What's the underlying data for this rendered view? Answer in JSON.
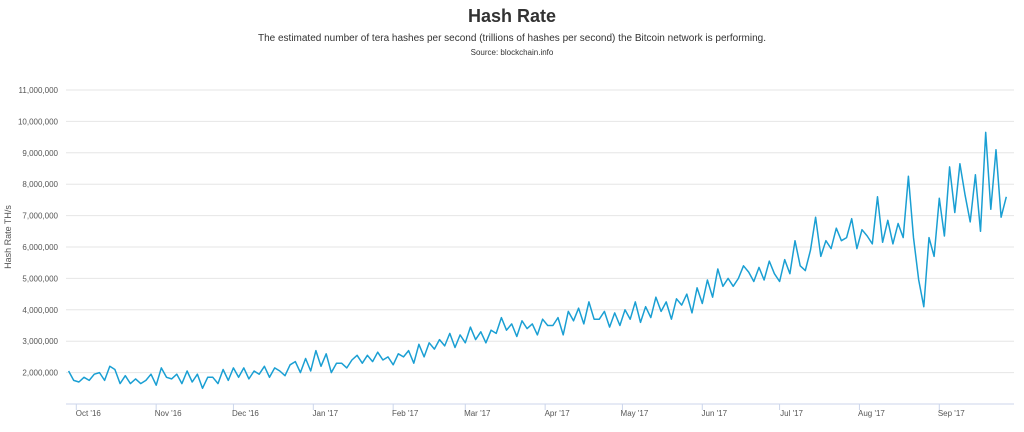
{
  "header": {
    "title": "Hash Rate",
    "subtitle": "The estimated number of tera hashes per second (trillions of hashes per second) the Bitcoin network is performing.",
    "source": "Source: blockchain.info"
  },
  "colors": {
    "line": "#1a9fd3",
    "grid": "#e6e6e6",
    "axis": "#ccd6eb"
  },
  "chart_data": {
    "type": "line",
    "title": "Hash Rate",
    "ylabel": "Hash Rate TH/s",
    "xlabel": "",
    "ylim": [
      1000000,
      11000000
    ],
    "xlim": [
      "2016-09-27",
      "2017-09-30"
    ],
    "grid": true,
    "yticks": [
      {
        "value": 2000000,
        "label": "2,000,000"
      },
      {
        "value": 3000000,
        "label": "3,000,000"
      },
      {
        "value": 4000000,
        "label": "4,000,000"
      },
      {
        "value": 5000000,
        "label": "5,000,000"
      },
      {
        "value": 6000000,
        "label": "6,000,000"
      },
      {
        "value": 7000000,
        "label": "7,000,000"
      },
      {
        "value": 8000000,
        "label": "8,000,000"
      },
      {
        "value": 9000000,
        "label": "9,000,000"
      },
      {
        "value": 10000000,
        "label": "10,000,000"
      },
      {
        "value": 11000000,
        "label": "11,000,000"
      }
    ],
    "xticks": [
      {
        "date": "2016-10-01",
        "label": "Oct '16"
      },
      {
        "date": "2016-11-01",
        "label": "Nov '16"
      },
      {
        "date": "2016-12-01",
        "label": "Dec '16"
      },
      {
        "date": "2017-01-01",
        "label": "Jan '17"
      },
      {
        "date": "2017-02-01",
        "label": "Feb '17"
      },
      {
        "date": "2017-03-01",
        "label": "Mar '17"
      },
      {
        "date": "2017-04-01",
        "label": "Apr '17"
      },
      {
        "date": "2017-05-01",
        "label": "May '17"
      },
      {
        "date": "2017-06-01",
        "label": "Jun '17"
      },
      {
        "date": "2017-07-01",
        "label": "Jul '17"
      },
      {
        "date": "2017-08-01",
        "label": "Aug '17"
      },
      {
        "date": "2017-09-01",
        "label": "Sep '17"
      }
    ],
    "series": [
      {
        "points": [
          [
            "2016-09-28",
            2050000
          ],
          [
            "2016-09-30",
            1750000
          ],
          [
            "2016-10-02",
            1700000
          ],
          [
            "2016-10-04",
            1850000
          ],
          [
            "2016-10-06",
            1750000
          ],
          [
            "2016-10-08",
            1950000
          ],
          [
            "2016-10-10",
            2000000
          ],
          [
            "2016-10-12",
            1750000
          ],
          [
            "2016-10-14",
            2200000
          ],
          [
            "2016-10-16",
            2100000
          ],
          [
            "2016-10-18",
            1650000
          ],
          [
            "2016-10-20",
            1900000
          ],
          [
            "2016-10-22",
            1650000
          ],
          [
            "2016-10-24",
            1800000
          ],
          [
            "2016-10-26",
            1650000
          ],
          [
            "2016-10-28",
            1750000
          ],
          [
            "2016-10-30",
            1950000
          ],
          [
            "2016-11-01",
            1600000
          ],
          [
            "2016-11-03",
            2150000
          ],
          [
            "2016-11-05",
            1850000
          ],
          [
            "2016-11-07",
            1800000
          ],
          [
            "2016-11-09",
            1950000
          ],
          [
            "2016-11-11",
            1650000
          ],
          [
            "2016-11-13",
            2050000
          ],
          [
            "2016-11-15",
            1700000
          ],
          [
            "2016-11-17",
            1950000
          ],
          [
            "2016-11-19",
            1500000
          ],
          [
            "2016-11-21",
            1850000
          ],
          [
            "2016-11-23",
            1850000
          ],
          [
            "2016-11-25",
            1650000
          ],
          [
            "2016-11-27",
            2100000
          ],
          [
            "2016-11-29",
            1750000
          ],
          [
            "2016-12-01",
            2150000
          ],
          [
            "2016-12-03",
            1850000
          ],
          [
            "2016-12-05",
            2150000
          ],
          [
            "2016-12-07",
            1800000
          ],
          [
            "2016-12-09",
            2050000
          ],
          [
            "2016-12-11",
            1950000
          ],
          [
            "2016-12-13",
            2200000
          ],
          [
            "2016-12-15",
            1850000
          ],
          [
            "2016-12-17",
            2150000
          ],
          [
            "2016-12-19",
            2050000
          ],
          [
            "2016-12-21",
            1900000
          ],
          [
            "2016-12-23",
            2250000
          ],
          [
            "2016-12-25",
            2350000
          ],
          [
            "2016-12-27",
            2000000
          ],
          [
            "2016-12-29",
            2450000
          ],
          [
            "2016-12-31",
            2050000
          ],
          [
            "2017-01-02",
            2700000
          ],
          [
            "2017-01-04",
            2200000
          ],
          [
            "2017-01-06",
            2600000
          ],
          [
            "2017-01-08",
            2000000
          ],
          [
            "2017-01-10",
            2300000
          ],
          [
            "2017-01-12",
            2300000
          ],
          [
            "2017-01-14",
            2150000
          ],
          [
            "2017-01-16",
            2400000
          ],
          [
            "2017-01-18",
            2550000
          ],
          [
            "2017-01-20",
            2300000
          ],
          [
            "2017-01-22",
            2550000
          ],
          [
            "2017-01-24",
            2350000
          ],
          [
            "2017-01-26",
            2650000
          ],
          [
            "2017-01-28",
            2400000
          ],
          [
            "2017-01-30",
            2500000
          ],
          [
            "2017-02-01",
            2250000
          ],
          [
            "2017-02-03",
            2600000
          ],
          [
            "2017-02-05",
            2500000
          ],
          [
            "2017-02-07",
            2700000
          ],
          [
            "2017-02-09",
            2300000
          ],
          [
            "2017-02-11",
            2900000
          ],
          [
            "2017-02-13",
            2500000
          ],
          [
            "2017-02-15",
            2950000
          ],
          [
            "2017-02-17",
            2750000
          ],
          [
            "2017-02-19",
            3050000
          ],
          [
            "2017-02-21",
            2850000
          ],
          [
            "2017-02-23",
            3250000
          ],
          [
            "2017-02-25",
            2800000
          ],
          [
            "2017-02-27",
            3200000
          ],
          [
            "2017-03-01",
            2950000
          ],
          [
            "2017-03-03",
            3450000
          ],
          [
            "2017-03-05",
            3050000
          ],
          [
            "2017-03-07",
            3300000
          ],
          [
            "2017-03-09",
            2950000
          ],
          [
            "2017-03-11",
            3350000
          ],
          [
            "2017-03-13",
            3250000
          ],
          [
            "2017-03-15",
            3750000
          ],
          [
            "2017-03-17",
            3350000
          ],
          [
            "2017-03-19",
            3550000
          ],
          [
            "2017-03-21",
            3150000
          ],
          [
            "2017-03-23",
            3650000
          ],
          [
            "2017-03-25",
            3400000
          ],
          [
            "2017-03-27",
            3550000
          ],
          [
            "2017-03-29",
            3200000
          ],
          [
            "2017-03-31",
            3700000
          ],
          [
            "2017-04-02",
            3500000
          ],
          [
            "2017-04-04",
            3500000
          ],
          [
            "2017-04-06",
            3750000
          ],
          [
            "2017-04-08",
            3200000
          ],
          [
            "2017-04-10",
            3950000
          ],
          [
            "2017-04-12",
            3650000
          ],
          [
            "2017-04-14",
            4050000
          ],
          [
            "2017-04-16",
            3550000
          ],
          [
            "2017-04-18",
            4250000
          ],
          [
            "2017-04-20",
            3700000
          ],
          [
            "2017-04-22",
            3700000
          ],
          [
            "2017-04-24",
            3950000
          ],
          [
            "2017-04-26",
            3450000
          ],
          [
            "2017-04-28",
            3900000
          ],
          [
            "2017-04-30",
            3500000
          ],
          [
            "2017-05-02",
            4000000
          ],
          [
            "2017-05-04",
            3700000
          ],
          [
            "2017-05-06",
            4250000
          ],
          [
            "2017-05-08",
            3600000
          ],
          [
            "2017-05-10",
            4100000
          ],
          [
            "2017-05-12",
            3750000
          ],
          [
            "2017-05-14",
            4400000
          ],
          [
            "2017-05-16",
            3950000
          ],
          [
            "2017-05-18",
            4250000
          ],
          [
            "2017-05-20",
            3700000
          ],
          [
            "2017-05-22",
            4350000
          ],
          [
            "2017-05-24",
            4150000
          ],
          [
            "2017-05-26",
            4500000
          ],
          [
            "2017-05-28",
            3900000
          ],
          [
            "2017-05-30",
            4700000
          ],
          [
            "2017-06-01",
            4200000
          ],
          [
            "2017-06-03",
            4950000
          ],
          [
            "2017-06-05",
            4400000
          ],
          [
            "2017-06-07",
            5300000
          ],
          [
            "2017-06-09",
            4750000
          ],
          [
            "2017-06-11",
            5000000
          ],
          [
            "2017-06-13",
            4750000
          ],
          [
            "2017-06-15",
            5000000
          ],
          [
            "2017-06-17",
            5400000
          ],
          [
            "2017-06-19",
            5200000
          ],
          [
            "2017-06-21",
            4900000
          ],
          [
            "2017-06-23",
            5350000
          ],
          [
            "2017-06-25",
            4950000
          ],
          [
            "2017-06-27",
            5550000
          ],
          [
            "2017-06-29",
            5150000
          ],
          [
            "2017-07-01",
            4900000
          ],
          [
            "2017-07-03",
            5600000
          ],
          [
            "2017-07-05",
            5150000
          ],
          [
            "2017-07-07",
            6200000
          ],
          [
            "2017-07-09",
            5400000
          ],
          [
            "2017-07-11",
            5250000
          ],
          [
            "2017-07-13",
            5900000
          ],
          [
            "2017-07-15",
            6950000
          ],
          [
            "2017-07-17",
            5700000
          ],
          [
            "2017-07-19",
            6200000
          ],
          [
            "2017-07-21",
            5950000
          ],
          [
            "2017-07-23",
            6600000
          ],
          [
            "2017-07-25",
            6200000
          ],
          [
            "2017-07-27",
            6300000
          ],
          [
            "2017-07-29",
            6900000
          ],
          [
            "2017-07-31",
            5950000
          ],
          [
            "2017-08-02",
            6550000
          ],
          [
            "2017-08-04",
            6350000
          ],
          [
            "2017-08-06",
            6100000
          ],
          [
            "2017-08-08",
            7600000
          ],
          [
            "2017-08-10",
            6150000
          ],
          [
            "2017-08-12",
            6850000
          ],
          [
            "2017-08-14",
            6100000
          ],
          [
            "2017-08-16",
            6750000
          ],
          [
            "2017-08-18",
            6300000
          ],
          [
            "2017-08-20",
            8250000
          ],
          [
            "2017-08-22",
            6300000
          ],
          [
            "2017-08-24",
            4950000
          ],
          [
            "2017-08-26",
            4100000
          ],
          [
            "2017-08-28",
            6300000
          ],
          [
            "2017-08-30",
            5700000
          ],
          [
            "2017-09-01",
            7550000
          ],
          [
            "2017-09-03",
            6350000
          ],
          [
            "2017-09-05",
            8550000
          ],
          [
            "2017-09-07",
            7100000
          ],
          [
            "2017-09-09",
            8650000
          ],
          [
            "2017-09-11",
            7650000
          ],
          [
            "2017-09-13",
            6800000
          ],
          [
            "2017-09-15",
            8300000
          ],
          [
            "2017-09-17",
            6500000
          ],
          [
            "2017-09-19",
            9650000
          ],
          [
            "2017-09-21",
            7200000
          ],
          [
            "2017-09-23",
            9100000
          ],
          [
            "2017-09-25",
            6950000
          ],
          [
            "2017-09-27",
            7600000
          ]
        ]
      }
    ]
  }
}
